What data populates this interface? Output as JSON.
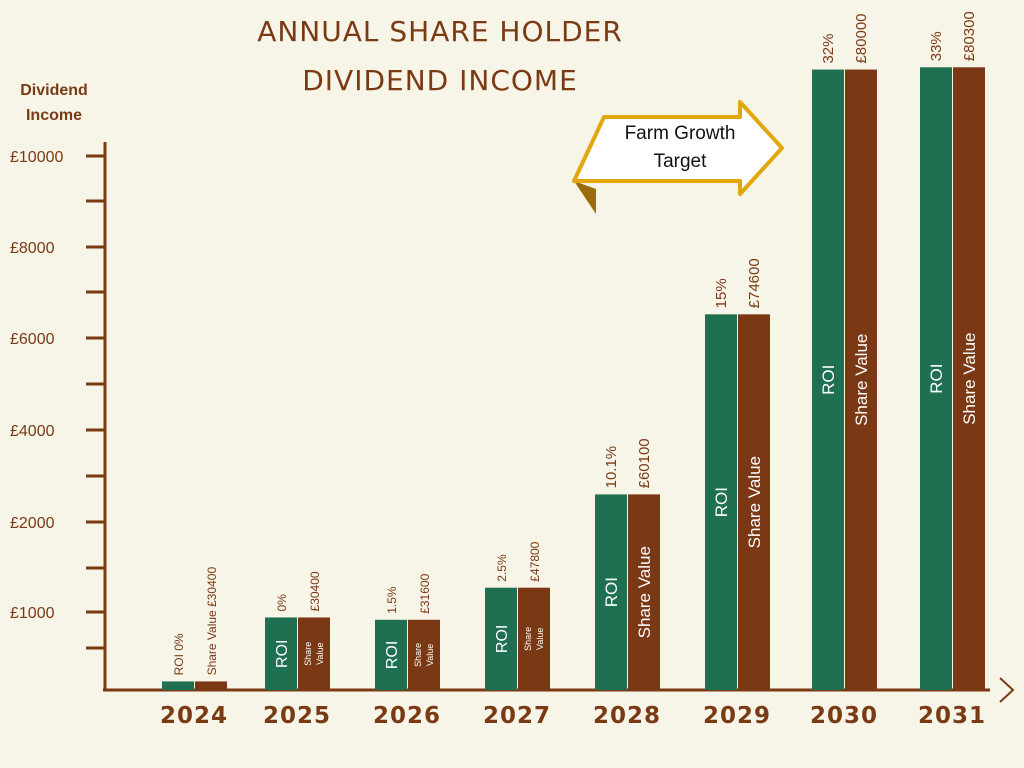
{
  "title_line1": "ANNUAL SHARE HOLDER",
  "title_line2": "DIVIDEND INCOME",
  "ylabel_line1": "Dividend",
  "ylabel_line2": "Income",
  "callout_line1": "Farm Growth",
  "callout_line2": "Target",
  "colors": {
    "roi": "#1e7050",
    "share": "#7a3814",
    "axis": "#7a3a14",
    "callout": "#e3a70d"
  },
  "chart_data": {
    "type": "bar",
    "categories": [
      "2024",
      "2025",
      "2026",
      "2027",
      "2028",
      "2029",
      "2030",
      "2031"
    ],
    "ytick_labels": [
      "£1000",
      "£2000",
      "£4000",
      "£6000",
      "£8000",
      "£10000"
    ],
    "series": [
      {
        "name": "ROI",
        "values": [
          110,
          930,
          900,
          1270,
          2600,
          6520,
          11900,
          11950
        ]
      },
      {
        "name": "Share Value",
        "values": [
          110,
          930,
          900,
          1270,
          2600,
          6520,
          11900,
          11950
        ]
      }
    ],
    "roi_labels": [
      "ROI 0%",
      "0%",
      "1.5%",
      "2.5%",
      "10.1%",
      "15%",
      "32%",
      "33%"
    ],
    "share_labels": [
      "Share Value £30400",
      "£30400",
      "£31600",
      "£47800",
      "£60100",
      "£74600",
      "£80000",
      "£80300"
    ],
    "roi_inner": [
      "",
      "ROI",
      "ROI",
      "ROI",
      "ROI",
      "ROI",
      "ROI",
      "ROI"
    ],
    "share_inner": [
      "",
      "Share Value",
      "Share Value",
      "Share Value",
      "Share Value",
      "Share Value",
      "Share Value",
      "Share Value"
    ]
  }
}
